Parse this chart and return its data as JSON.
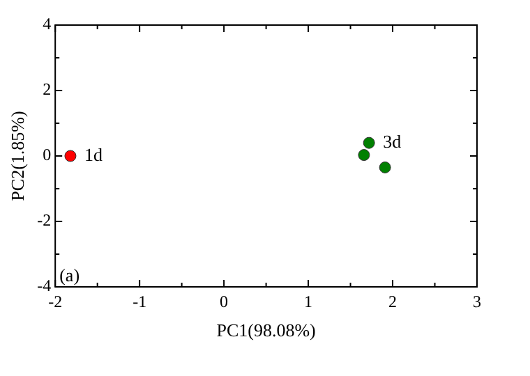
{
  "chart_data": {
    "type": "scatter",
    "xlabel": "PC1(98.08%)",
    "ylabel": "PC2(1.85%)",
    "series": [
      {
        "color": "#ff0000",
        "x": [
          -1.82
        ],
        "values": [
          0
        ]
      },
      {
        "color": "#008000",
        "x": [
          1.72,
          1.66,
          1.91
        ],
        "values": [
          0.4,
          0.03,
          -0.35
        ]
      }
    ],
    "xlim": [
      -2,
      3
    ],
    "ylim": [
      -4,
      4
    ],
    "xticks": [
      -2,
      {
        "value": -1.5,
        "label": null
      },
      -1,
      {
        "value": -0.5,
        "label": null
      },
      0,
      {
        "value": 0.5,
        "label": null
      },
      1,
      {
        "value": 1.5,
        "label": null
      },
      2,
      {
        "value": 2.5,
        "label": null
      },
      3
    ],
    "yticks": [
      -4,
      {
        "value": -3,
        "label": null
      },
      -2,
      {
        "value": -1,
        "label": null
      },
      0,
      {
        "value": 1,
        "label": null
      },
      2,
      {
        "value": 3,
        "label": null
      },
      4
    ],
    "annotations": [
      {
        "text": "1d",
        "x": -1.82,
        "y": 0
      },
      {
        "text": "3d",
        "x": 1.72,
        "y": 0.4
      },
      "(a)"
    ],
    "marker": "circle",
    "grid": false,
    "legend": false
  }
}
